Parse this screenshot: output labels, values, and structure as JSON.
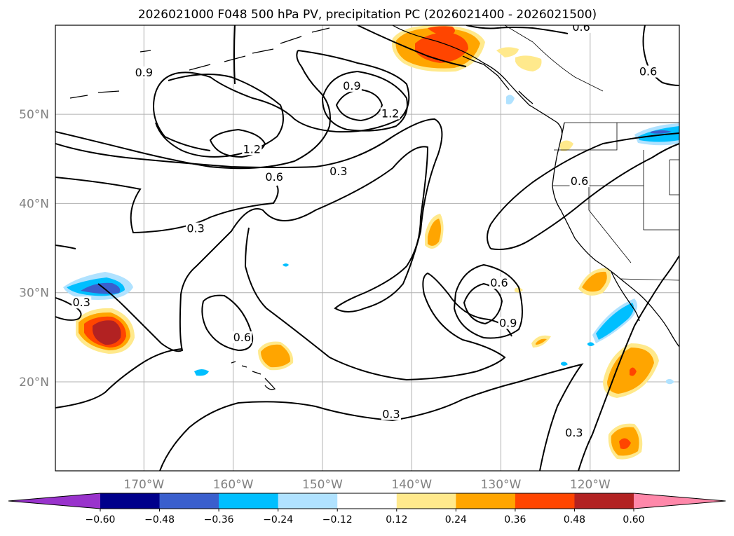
{
  "chart_data": {
    "type": "map",
    "title": "2026021000 F048 500 hPa PV, precipitation PC (2026021400 - 2026021500)",
    "lon_ticks": [
      {
        "value": -170,
        "label": "170°W"
      },
      {
        "value": -160,
        "label": "160°W"
      },
      {
        "value": -150,
        "label": "150°W"
      },
      {
        "value": -140,
        "label": "140°W"
      },
      {
        "value": -130,
        "label": "130°W"
      },
      {
        "value": -120,
        "label": "120°W"
      }
    ],
    "lat_ticks": [
      {
        "value": 20,
        "label": "20°N"
      },
      {
        "value": 30,
        "label": "30°N"
      },
      {
        "value": 40,
        "label": "40°N"
      },
      {
        "value": 50,
        "label": "50°N"
      }
    ],
    "colorbar": {
      "boundaries": [
        "−0.60",
        "−0.48",
        "−0.36",
        "−0.24",
        "−0.12",
        "0.12",
        "0.24",
        "0.36",
        "0.48",
        "0.60"
      ],
      "colors": [
        "#9933cc",
        "#00008b",
        "#3a5fcd",
        "#00bfff",
        "#b0e2ff",
        "#ffffff",
        "#ffe98c",
        "#ffa500",
        "#ff4500",
        "#b22222",
        "#ff88aa"
      ]
    },
    "contour_labels": [
      {
        "text": "0.9",
        "lon": -170.0,
        "lat": 54.5
      },
      {
        "text": "0.9",
        "lon": -146.7,
        "lat": 53.0
      },
      {
        "text": "1.2",
        "lon": -142.4,
        "lat": 49.9
      },
      {
        "text": "1.2",
        "lon": -157.9,
        "lat": 45.9
      },
      {
        "text": "0.6",
        "lon": -155.4,
        "lat": 42.8
      },
      {
        "text": "0.3",
        "lon": -148.2,
        "lat": 43.4
      },
      {
        "text": "0.3",
        "lon": -164.2,
        "lat": 37.0
      },
      {
        "text": "0.3",
        "lon": -177.0,
        "lat": 28.7
      },
      {
        "text": "0.6",
        "lon": -159.0,
        "lat": 24.8
      },
      {
        "text": "0.6",
        "lon": -130.2,
        "lat": 30.9
      },
      {
        "text": "0.9",
        "lon": -129.2,
        "lat": 26.4
      },
      {
        "text": "0.3",
        "lon": -142.3,
        "lat": 16.2
      },
      {
        "text": "0.3",
        "lon": -121.8,
        "lat": 14.1
      },
      {
        "text": "0.6",
        "lon": -121.2,
        "lat": 42.3
      },
      {
        "text": "0.6",
        "lon": -121.0,
        "lat": 59.6
      },
      {
        "text": "0.6",
        "lon": -113.5,
        "lat": 54.6
      }
    ]
  }
}
